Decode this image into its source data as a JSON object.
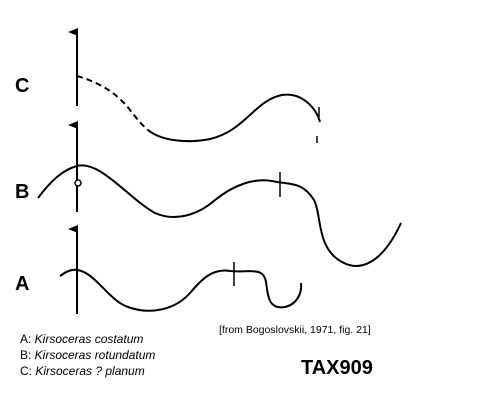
{
  "rows": [
    {
      "label": "C"
    },
    {
      "label": "B"
    },
    {
      "label": "A"
    }
  ],
  "legend": [
    {
      "prefix": "A: ",
      "species": "Kirsoceras costatum"
    },
    {
      "prefix": "B: ",
      "species": "Kirsoceras rotundatum"
    },
    {
      "prefix": "C: ",
      "species": "Kirsoceras ? planum"
    }
  ],
  "citation": "[from Bogoslovskii, 1971, fig. 21]",
  "code": "TAX909",
  "colors": {
    "ink": "#000000",
    "background": "#ffffff"
  }
}
